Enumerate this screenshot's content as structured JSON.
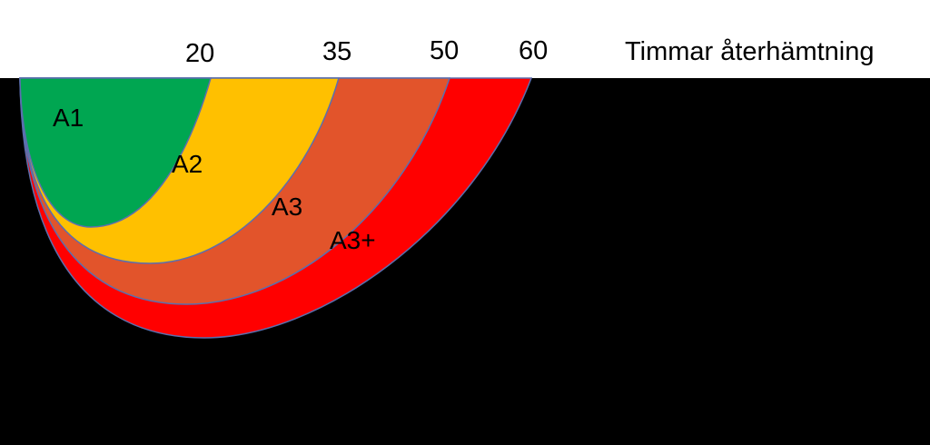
{
  "header": {
    "tick_labels": [
      "20",
      "35",
      "50",
      "60"
    ],
    "axis_title": "Timmar återhämtning"
  },
  "zones": [
    {
      "label": "A1",
      "color": "#00a651"
    },
    {
      "label": "A2",
      "color": "#ffc000"
    },
    {
      "label": "A3",
      "color": "#e2542b"
    },
    {
      "label": "A3+",
      "color": "#ff0000"
    }
  ],
  "colors": {
    "background": "#000000",
    "header_background": "#ffffff",
    "outline": "#5b6fae"
  }
}
